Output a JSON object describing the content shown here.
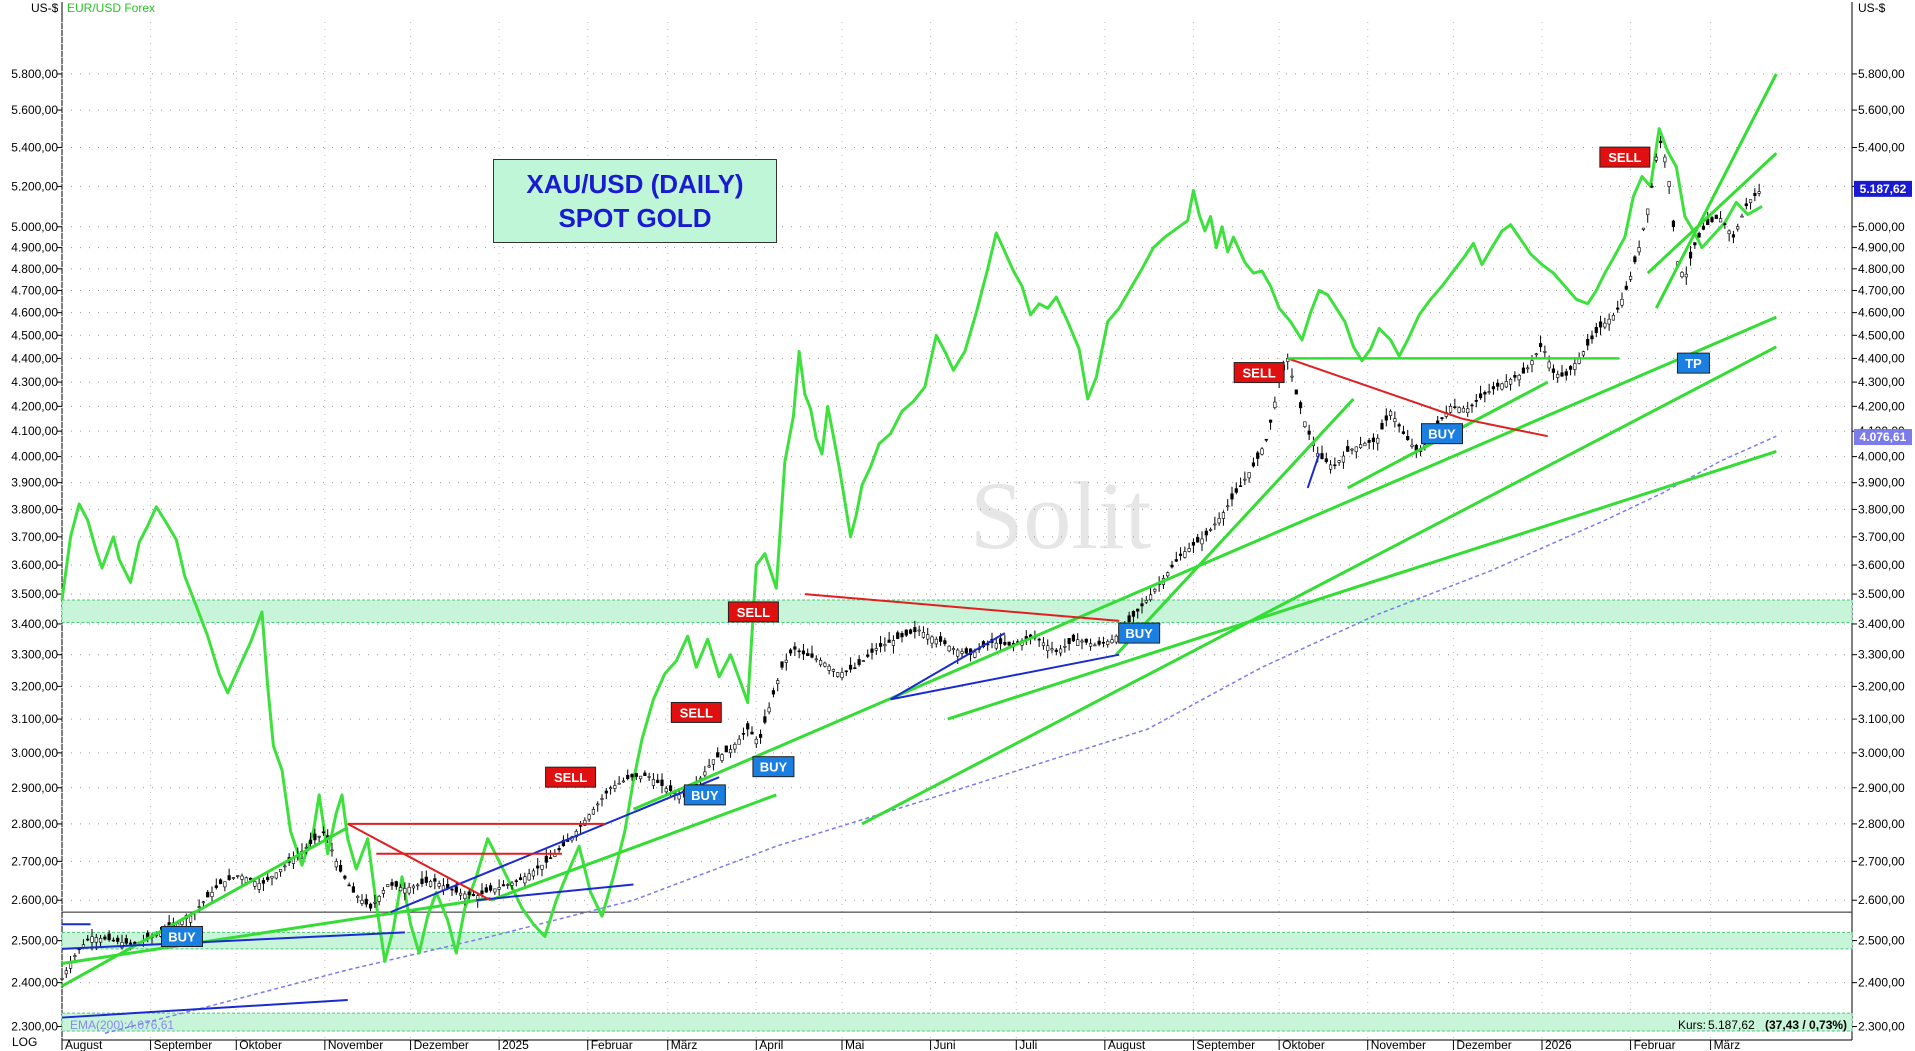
{
  "chart_data": {
    "type": "candlestick",
    "title": "XAU/USD (DAILY)",
    "subtitle": "SPOT GOLD",
    "currency_left": "US-$",
    "currency_right": "US-$",
    "overlay_legend": "EUR/USD Forex",
    "scale_label": "LOG",
    "ema_label": "EMA(200):4.076,61",
    "price_info_prefix": "Kurs:",
    "price_info_value": "5.187,62",
    "price_info_change": "(37,43 / 0,73%)",
    "last_price_marker": "5.187,62",
    "ema_price_marker": "4.076,61",
    "watermark": "Solit",
    "ylim": [
      2270,
      6100
    ],
    "y_scale": "log",
    "y_ticks": [
      2300,
      2400,
      2500,
      2600,
      2700,
      2800,
      2900,
      3000,
      3100,
      3200,
      3300,
      3400,
      3500,
      3600,
      3700,
      3800,
      3900,
      4000,
      4100,
      4200,
      4300,
      4400,
      4500,
      4600,
      4700,
      4800,
      4900,
      5000,
      5200,
      5400,
      5600,
      5800
    ],
    "y_tick_labels": [
      "2.300,00",
      "2.400,00",
      "2.500,00",
      "2.600,00",
      "2.700,00",
      "2.800,00",
      "2.900,00",
      "3.000,00",
      "3.100,00",
      "3.200,00",
      "3.300,00",
      "3.400,00",
      "3.500,00",
      "3.600,00",
      "3.700,00",
      "3.800,00",
      "3.900,00",
      "4.000,00",
      "4.100,00",
      "4.200,00",
      "4.300,00",
      "4.400,00",
      "4.500,00",
      "4.600,00",
      "4.700,00",
      "4.800,00",
      "4.900,00",
      "5.000,00",
      "5.200,00",
      "5.400,00",
      "5.600,00",
      "5.800,00"
    ],
    "x_labels": [
      "August",
      "September",
      "Oktober",
      "November",
      "Dezember",
      "2025",
      "Februar",
      "März",
      "April",
      "Mai",
      "Juni",
      "Juli",
      "August",
      "September",
      "Oktober",
      "November",
      "Dezember",
      "2026",
      "Februar",
      "März"
    ],
    "x_label_days": [
      0,
      31,
      61,
      92,
      122,
      153,
      184,
      212,
      243,
      273,
      304,
      334,
      365,
      396,
      426,
      457,
      487,
      518,
      549,
      577
    ],
    "x_domain_days": [
      0,
      595
    ],
    "price_path": [
      [
        0,
        2410
      ],
      [
        5,
        2470
      ],
      [
        10,
        2510
      ],
      [
        18,
        2500
      ],
      [
        25,
        2490
      ],
      [
        35,
        2520
      ],
      [
        45,
        2560
      ],
      [
        55,
        2640
      ],
      [
        62,
        2665
      ],
      [
        70,
        2640
      ],
      [
        80,
        2700
      ],
      [
        92,
        2780
      ],
      [
        97,
        2680
      ],
      [
        102,
        2620
      ],
      [
        108,
        2580
      ],
      [
        114,
        2640
      ],
      [
        120,
        2630
      ],
      [
        130,
        2650
      ],
      [
        138,
        2620
      ],
      [
        145,
        2610
      ],
      [
        150,
        2625
      ],
      [
        160,
        2650
      ],
      [
        170,
        2700
      ],
      [
        178,
        2760
      ],
      [
        185,
        2830
      ],
      [
        192,
        2900
      ],
      [
        199,
        2930
      ],
      [
        205,
        2935
      ],
      [
        211,
        2900
      ],
      [
        216,
        2880
      ],
      [
        222,
        2910
      ],
      [
        228,
        2980
      ],
      [
        234,
        3010
      ],
      [
        240,
        3070
      ],
      [
        244,
        3030
      ],
      [
        247,
        3120
      ],
      [
        252,
        3260
      ],
      [
        256,
        3320
      ],
      [
        260,
        3300
      ],
      [
        266,
        3280
      ],
      [
        272,
        3240
      ],
      [
        278,
        3260
      ],
      [
        285,
        3320
      ],
      [
        292,
        3350
      ],
      [
        300,
        3380
      ],
      [
        304,
        3360
      ],
      [
        312,
        3320
      ],
      [
        318,
        3300
      ],
      [
        325,
        3340
      ],
      [
        332,
        3330
      ],
      [
        340,
        3360
      ],
      [
        348,
        3310
      ],
      [
        355,
        3350
      ],
      [
        362,
        3330
      ],
      [
        368,
        3350
      ],
      [
        372,
        3390
      ],
      [
        378,
        3460
      ],
      [
        386,
        3560
      ],
      [
        392,
        3640
      ],
      [
        400,
        3700
      ],
      [
        406,
        3780
      ],
      [
        412,
        3880
      ],
      [
        418,
        3980
      ],
      [
        422,
        4080
      ],
      [
        426,
        4300
      ],
      [
        429,
        4400
      ],
      [
        432,
        4250
      ],
      [
        436,
        4100
      ],
      [
        440,
        4000
      ],
      [
        445,
        3960
      ],
      [
        450,
        4020
      ],
      [
        455,
        4050
      ],
      [
        460,
        4060
      ],
      [
        465,
        4180
      ],
      [
        470,
        4080
      ],
      [
        475,
        4010
      ],
      [
        480,
        4100
      ],
      [
        486,
        4200
      ],
      [
        492,
        4190
      ],
      [
        498,
        4250
      ],
      [
        505,
        4300
      ],
      [
        512,
        4340
      ],
      [
        518,
        4460
      ],
      [
        522,
        4340
      ],
      [
        526,
        4320
      ],
      [
        532,
        4420
      ],
      [
        538,
        4530
      ],
      [
        544,
        4600
      ],
      [
        548,
        4720
      ],
      [
        552,
        4900
      ],
      [
        556,
        5150
      ],
      [
        559,
        5450
      ],
      [
        562,
        5300
      ],
      [
        565,
        4850
      ],
      [
        568,
        4750
      ],
      [
        571,
        4900
      ],
      [
        575,
        5000
      ],
      [
        580,
        5050
      ],
      [
        585,
        4950
      ],
      [
        590,
        5120
      ],
      [
        595,
        5187
      ]
    ],
    "eurusd_path": [
      [
        0,
        3480
      ],
      [
        3,
        3700
      ],
      [
        6,
        3820
      ],
      [
        9,
        3760
      ],
      [
        12,
        3650
      ],
      [
        14,
        3590
      ],
      [
        18,
        3700
      ],
      [
        20,
        3620
      ],
      [
        24,
        3540
      ],
      [
        27,
        3680
      ],
      [
        30,
        3740
      ],
      [
        33,
        3810
      ],
      [
        36,
        3760
      ],
      [
        40,
        3690
      ],
      [
        43,
        3560
      ],
      [
        47,
        3460
      ],
      [
        51,
        3360
      ],
      [
        55,
        3240
      ],
      [
        58,
        3180
      ],
      [
        62,
        3260
      ],
      [
        66,
        3340
      ],
      [
        70,
        3440
      ],
      [
        72,
        3200
      ],
      [
        74,
        3020
      ],
      [
        77,
        2950
      ],
      [
        80,
        2780
      ],
      [
        84,
        2690
      ],
      [
        88,
        2780
      ],
      [
        90,
        2880
      ],
      [
        93,
        2720
      ],
      [
        96,
        2830
      ],
      [
        98,
        2880
      ],
      [
        100,
        2760
      ],
      [
        103,
        2680
      ],
      [
        107,
        2760
      ],
      [
        110,
        2590
      ],
      [
        113,
        2450
      ],
      [
        116,
        2530
      ],
      [
        119,
        2660
      ],
      [
        122,
        2540
      ],
      [
        125,
        2470
      ],
      [
        128,
        2560
      ],
      [
        131,
        2620
      ],
      [
        135,
        2550
      ],
      [
        138,
        2470
      ],
      [
        141,
        2580
      ],
      [
        145,
        2660
      ],
      [
        149,
        2760
      ],
      [
        153,
        2700
      ],
      [
        157,
        2640
      ],
      [
        161,
        2580
      ],
      [
        165,
        2540
      ],
      [
        169,
        2510
      ],
      [
        173,
        2600
      ],
      [
        177,
        2670
      ],
      [
        181,
        2740
      ],
      [
        185,
        2620
      ],
      [
        189,
        2560
      ],
      [
        193,
        2660
      ],
      [
        197,
        2780
      ],
      [
        200,
        2920
      ],
      [
        203,
        3040
      ],
      [
        207,
        3160
      ],
      [
        211,
        3240
      ],
      [
        215,
        3280
      ],
      [
        219,
        3360
      ],
      [
        222,
        3260
      ],
      [
        226,
        3350
      ],
      [
        230,
        3230
      ],
      [
        234,
        3300
      ],
      [
        238,
        3200
      ],
      [
        240,
        3150
      ],
      [
        243,
        3600
      ],
      [
        246,
        3640
      ],
      [
        250,
        3520
      ],
      [
        253,
        3980
      ],
      [
        256,
        4160
      ],
      [
        258,
        4430
      ],
      [
        260,
        4250
      ],
      [
        262,
        4190
      ],
      [
        264,
        4070
      ],
      [
        266,
        4010
      ],
      [
        268,
        4200
      ],
      [
        270,
        4080
      ],
      [
        272,
        3960
      ],
      [
        274,
        3830
      ],
      [
        276,
        3700
      ],
      [
        278,
        3780
      ],
      [
        280,
        3890
      ],
      [
        283,
        3960
      ],
      [
        286,
        4050
      ],
      [
        290,
        4090
      ],
      [
        294,
        4180
      ],
      [
        298,
        4220
      ],
      [
        302,
        4280
      ],
      [
        306,
        4500
      ],
      [
        309,
        4430
      ],
      [
        312,
        4350
      ],
      [
        316,
        4430
      ],
      [
        320,
        4600
      ],
      [
        324,
        4800
      ],
      [
        327,
        4970
      ],
      [
        330,
        4880
      ],
      [
        333,
        4790
      ],
      [
        336,
        4720
      ],
      [
        339,
        4590
      ],
      [
        342,
        4640
      ],
      [
        345,
        4620
      ],
      [
        348,
        4670
      ],
      [
        352,
        4560
      ],
      [
        356,
        4440
      ],
      [
        359,
        4230
      ],
      [
        362,
        4320
      ],
      [
        366,
        4560
      ],
      [
        370,
        4620
      ],
      [
        374,
        4710
      ],
      [
        378,
        4800
      ],
      [
        382,
        4900
      ],
      [
        386,
        4950
      ],
      [
        390,
        4990
      ],
      [
        394,
        5030
      ],
      [
        396,
        5180
      ],
      [
        398,
        5060
      ],
      [
        400,
        4980
      ],
      [
        402,
        5050
      ],
      [
        404,
        4900
      ],
      [
        406,
        5000
      ],
      [
        408,
        4880
      ],
      [
        410,
        4950
      ],
      [
        414,
        4830
      ],
      [
        417,
        4780
      ],
      [
        420,
        4790
      ],
      [
        423,
        4720
      ],
      [
        426,
        4620
      ],
      [
        430,
        4560
      ],
      [
        434,
        4480
      ],
      [
        437,
        4600
      ],
      [
        440,
        4700
      ],
      [
        443,
        4680
      ],
      [
        446,
        4620
      ],
      [
        449,
        4560
      ],
      [
        452,
        4450
      ],
      [
        455,
        4390
      ],
      [
        458,
        4440
      ],
      [
        461,
        4530
      ],
      [
        465,
        4480
      ],
      [
        468,
        4410
      ],
      [
        471,
        4480
      ],
      [
        475,
        4590
      ],
      [
        479,
        4660
      ],
      [
        483,
        4720
      ],
      [
        487,
        4790
      ],
      [
        491,
        4860
      ],
      [
        494,
        4920
      ],
      [
        497,
        4820
      ],
      [
        500,
        4890
      ],
      [
        504,
        4980
      ],
      [
        507,
        5010
      ],
      [
        510,
        4950
      ],
      [
        514,
        4870
      ],
      [
        518,
        4820
      ],
      [
        522,
        4780
      ],
      [
        526,
        4720
      ],
      [
        530,
        4660
      ],
      [
        534,
        4640
      ],
      [
        537,
        4700
      ],
      [
        540,
        4780
      ],
      [
        543,
        4850
      ],
      [
        547,
        4950
      ],
      [
        550,
        5150
      ],
      [
        553,
        5250
      ],
      [
        556,
        5200
      ],
      [
        559,
        5500
      ],
      [
        562,
        5380
      ],
      [
        565,
        5300
      ],
      [
        568,
        5050
      ],
      [
        571,
        4980
      ],
      [
        574,
        4900
      ],
      [
        578,
        4960
      ],
      [
        582,
        5020
      ],
      [
        586,
        5120
      ],
      [
        590,
        5060
      ],
      [
        595,
        5100
      ]
    ],
    "ema_path": [
      [
        15,
        2285
      ],
      [
        60,
        2360
      ],
      [
        100,
        2430
      ],
      [
        150,
        2510
      ],
      [
        200,
        2600
      ],
      [
        250,
        2740
      ],
      [
        300,
        2860
      ],
      [
        350,
        2990
      ],
      [
        380,
        3070
      ],
      [
        420,
        3260
      ],
      [
        460,
        3430
      ],
      [
        500,
        3580
      ],
      [
        540,
        3760
      ],
      [
        560,
        3860
      ],
      [
        580,
        3980
      ],
      [
        600,
        4080
      ]
    ],
    "green_lines": [
      [
        [
          0,
          2392
        ],
        [
          100,
          2790
        ]
      ],
      [
        [
          0,
          2445
        ],
        [
          150,
          2605
        ]
      ],
      [
        [
          150,
          2600
        ],
        [
          250,
          2880
        ]
      ],
      [
        [
          200,
          2840
        ],
        [
          600,
          4580
        ]
      ],
      [
        [
          280,
          2800
        ],
        [
          600,
          4450
        ]
      ],
      [
        [
          310,
          3100
        ],
        [
          600,
          4020
        ]
      ],
      [
        [
          369,
          3300
        ],
        [
          452,
          4230
        ]
      ],
      [
        [
          450,
          3880
        ],
        [
          520,
          4300
        ]
      ],
      [
        [
          558,
          4620
        ],
        [
          600,
          5800
        ]
      ],
      [
        [
          555,
          4780
        ],
        [
          600,
          5370
        ]
      ]
    ],
    "blue_lines": [
      [
        [
          0,
          2480
        ],
        [
          120,
          2520
        ]
      ],
      [
        [
          0,
          2540
        ],
        [
          10,
          2540
        ]
      ],
      [
        [
          115,
          2570
        ],
        [
          230,
          2930
        ]
      ],
      [
        [
          145,
          2600
        ],
        [
          200,
          2640
        ]
      ],
      [
        [
          290,
          3160
        ],
        [
          370,
          3300
        ]
      ],
      [
        [
          290,
          3160
        ],
        [
          330,
          3370
        ]
      ],
      [
        [
          0,
          2320
        ],
        [
          100,
          2360
        ]
      ],
      [
        [
          436,
          3880
        ],
        [
          440,
          4010
        ]
      ]
    ],
    "red_lines": [
      [
        [
          100,
          2800
        ],
        [
          150,
          2600
        ]
      ],
      [
        [
          100,
          2800
        ],
        [
          190,
          2800
        ]
      ],
      [
        [
          110,
          2720
        ],
        [
          175,
          2720
        ]
      ],
      [
        [
          260,
          3500
        ],
        [
          370,
          3410
        ]
      ],
      [
        [
          429,
          4400
        ],
        [
          490,
          4150
        ]
      ],
      [
        [
          490,
          4150
        ],
        [
          520,
          4080
        ]
      ]
    ],
    "horizontal_green_line": [
      [
        429,
        4400
      ],
      [
        545,
        4400
      ]
    ],
    "support_black_line": 2570,
    "zones": [
      [
        3405,
        3480
      ],
      [
        2480,
        2520
      ],
      [
        2290,
        2330
      ]
    ],
    "signals": [
      {
        "label": "BUY",
        "kind": "buy",
        "day": 42,
        "price": 2510
      },
      {
        "label": "SELL",
        "kind": "sell",
        "day": 178,
        "price": 2930
      },
      {
        "label": "SELL",
        "kind": "sell",
        "day": 222,
        "price": 3120
      },
      {
        "label": "BUY",
        "kind": "buy",
        "day": 225,
        "price": 2880
      },
      {
        "label": "BUY",
        "kind": "buy",
        "day": 249,
        "price": 2960
      },
      {
        "label": "SELL",
        "kind": "sell",
        "day": 242,
        "price": 3440
      },
      {
        "label": "BUY",
        "kind": "buy",
        "day": 377,
        "price": 3370
      },
      {
        "label": "SELL",
        "kind": "sell",
        "day": 419,
        "price": 4340
      },
      {
        "label": "BUY",
        "kind": "buy",
        "day": 483,
        "price": 4090
      },
      {
        "label": "SELL",
        "kind": "sell",
        "day": 547,
        "price": 5350
      },
      {
        "label": "TP",
        "kind": "tp",
        "day": 571,
        "price": 4380
      }
    ]
  }
}
